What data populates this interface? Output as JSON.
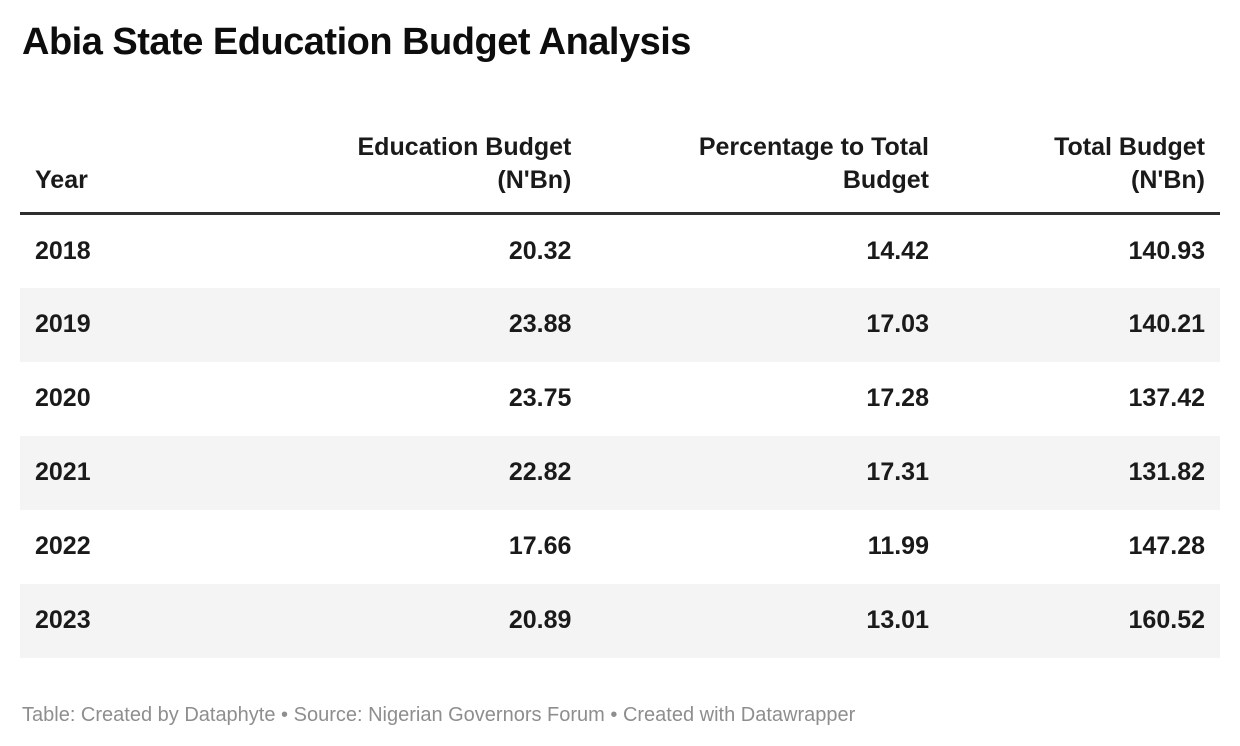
{
  "title": "Abia State Education Budget Analysis",
  "table_header": {
    "year": "Year",
    "education_budget": "Education Budget\n(N'Bn)",
    "percentage": "Percentage to Total\nBudget",
    "total_budget": "Total Budget\n(N'Bn)"
  },
  "chart_data": {
    "type": "table",
    "title": "Abia State Education Budget Analysis",
    "columns": [
      "Year",
      "Education Budget (N'Bn)",
      "Percentage to Total Budget",
      "Total Budget (N'Bn)"
    ],
    "rows": [
      [
        "2018",
        20.32,
        14.42,
        140.93
      ],
      [
        "2019",
        23.88,
        17.03,
        140.21
      ],
      [
        "2020",
        23.75,
        17.28,
        137.42
      ],
      [
        "2021",
        22.82,
        17.31,
        131.82
      ],
      [
        "2022",
        17.66,
        11.99,
        147.28
      ],
      [
        "2023",
        20.89,
        13.01,
        160.52
      ]
    ],
    "layout": {
      "header_align": [
        "left",
        "right",
        "right",
        "right"
      ],
      "zebra_striping": true,
      "grid": "off"
    }
  },
  "footer": {
    "attribution": "Table: Created by Dataphyte • Source: Nigerian Governors Forum • Created with Datawrapper"
  },
  "colors": {
    "text": "#1a1a1a",
    "stripe": "#f4f4f4",
    "header_rule": "#2e2e2e",
    "footer_text": "#8e8e8e",
    "background": "#ffffff"
  }
}
